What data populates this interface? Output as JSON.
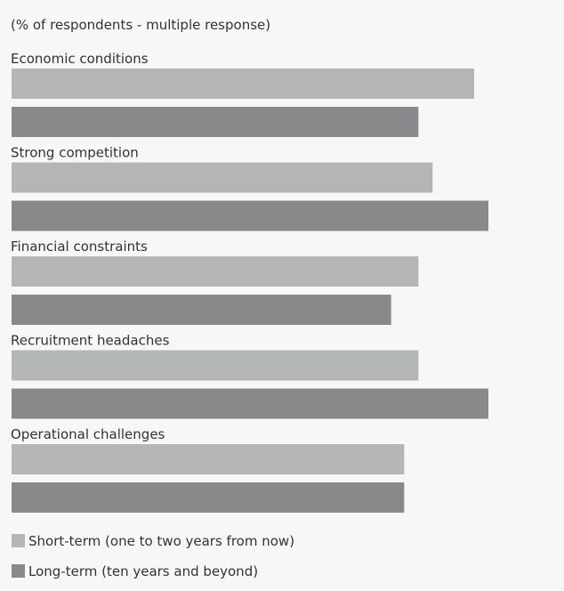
{
  "chart_data": {
    "type": "bar",
    "orientation": "horizontal",
    "subtitle": "(% of respondents - multiple response)",
    "categories": [
      "Economic conditions",
      "Strong competition",
      "Financial constraints",
      "Recruitment headaches",
      "Operational challenges"
    ],
    "series": [
      {
        "name": "Short-term (one to two years from now)",
        "color": "#b3b6b4",
        "values": [
          39,
          35.5,
          34.3,
          34.3,
          33.1
        ]
      },
      {
        "name": "Long-term (ten years and beyond)",
        "color": "#87898b",
        "values": [
          34.3,
          40.2,
          32,
          40.2,
          33.1
        ]
      }
    ],
    "xlim": [
      0,
      45
    ],
    "grid": false,
    "legend_position": "bottom-left"
  },
  "colors": {
    "background": "#f7f7f7",
    "text": "#333333"
  }
}
